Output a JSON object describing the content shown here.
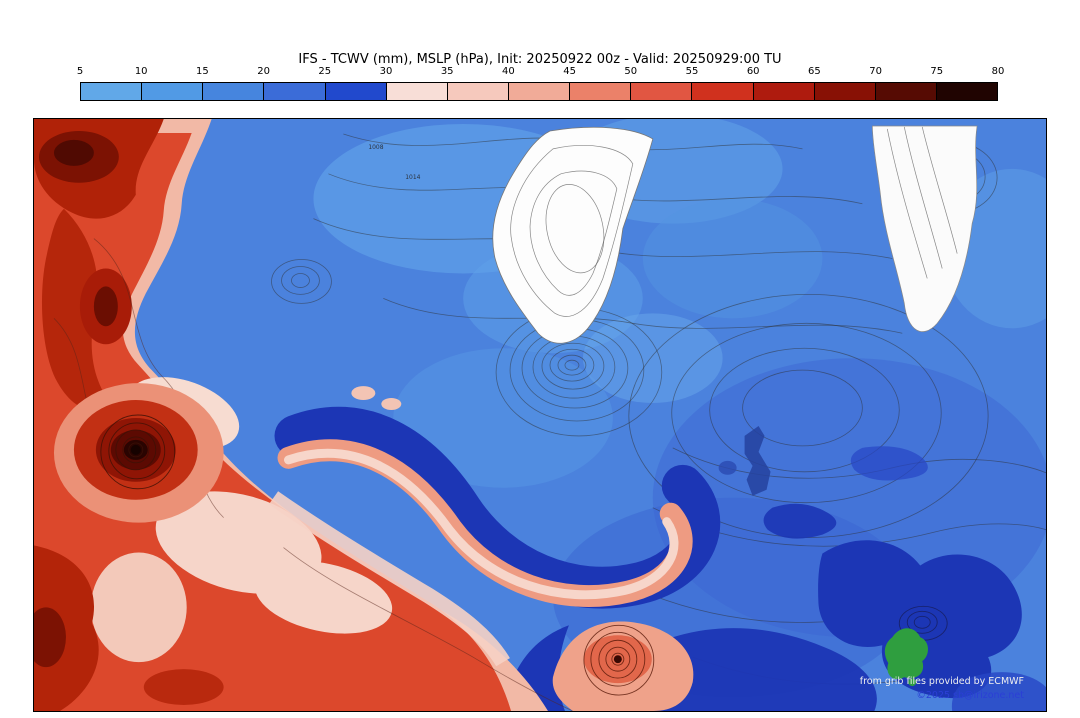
{
  "header": {
    "title": "IFS - TCWV (mm), MSLP (hPa), Init: 20250922 00z - Valid: 20250929:00 TU"
  },
  "colorbar": {
    "unit": "mm",
    "ticks": [
      "5",
      "10",
      "15",
      "20",
      "25",
      "30",
      "35",
      "40",
      "45",
      "50",
      "55",
      "60",
      "65",
      "70",
      "75",
      "80"
    ],
    "segment_colors": [
      "#61a8e8",
      "#519ae5",
      "#4685de",
      "#3b6cd8",
      "#2149cd",
      "#f8ded7",
      "#f6c9bd",
      "#f1ab98",
      "#eb8169",
      "#e15642",
      "#d0311e",
      "#ae1b0e",
      "#881105",
      "#560b03",
      "#200401"
    ]
  },
  "map": {
    "field_names": {
      "shading": "TCWV (mm)",
      "contours": "MSLP (hPa)"
    },
    "pressure_labels": [
      "1008",
      "1014"
    ],
    "credits": {
      "line1": "from grib files provided by ECMWF",
      "line2": "©2025 sb@irizone.net"
    }
  }
}
